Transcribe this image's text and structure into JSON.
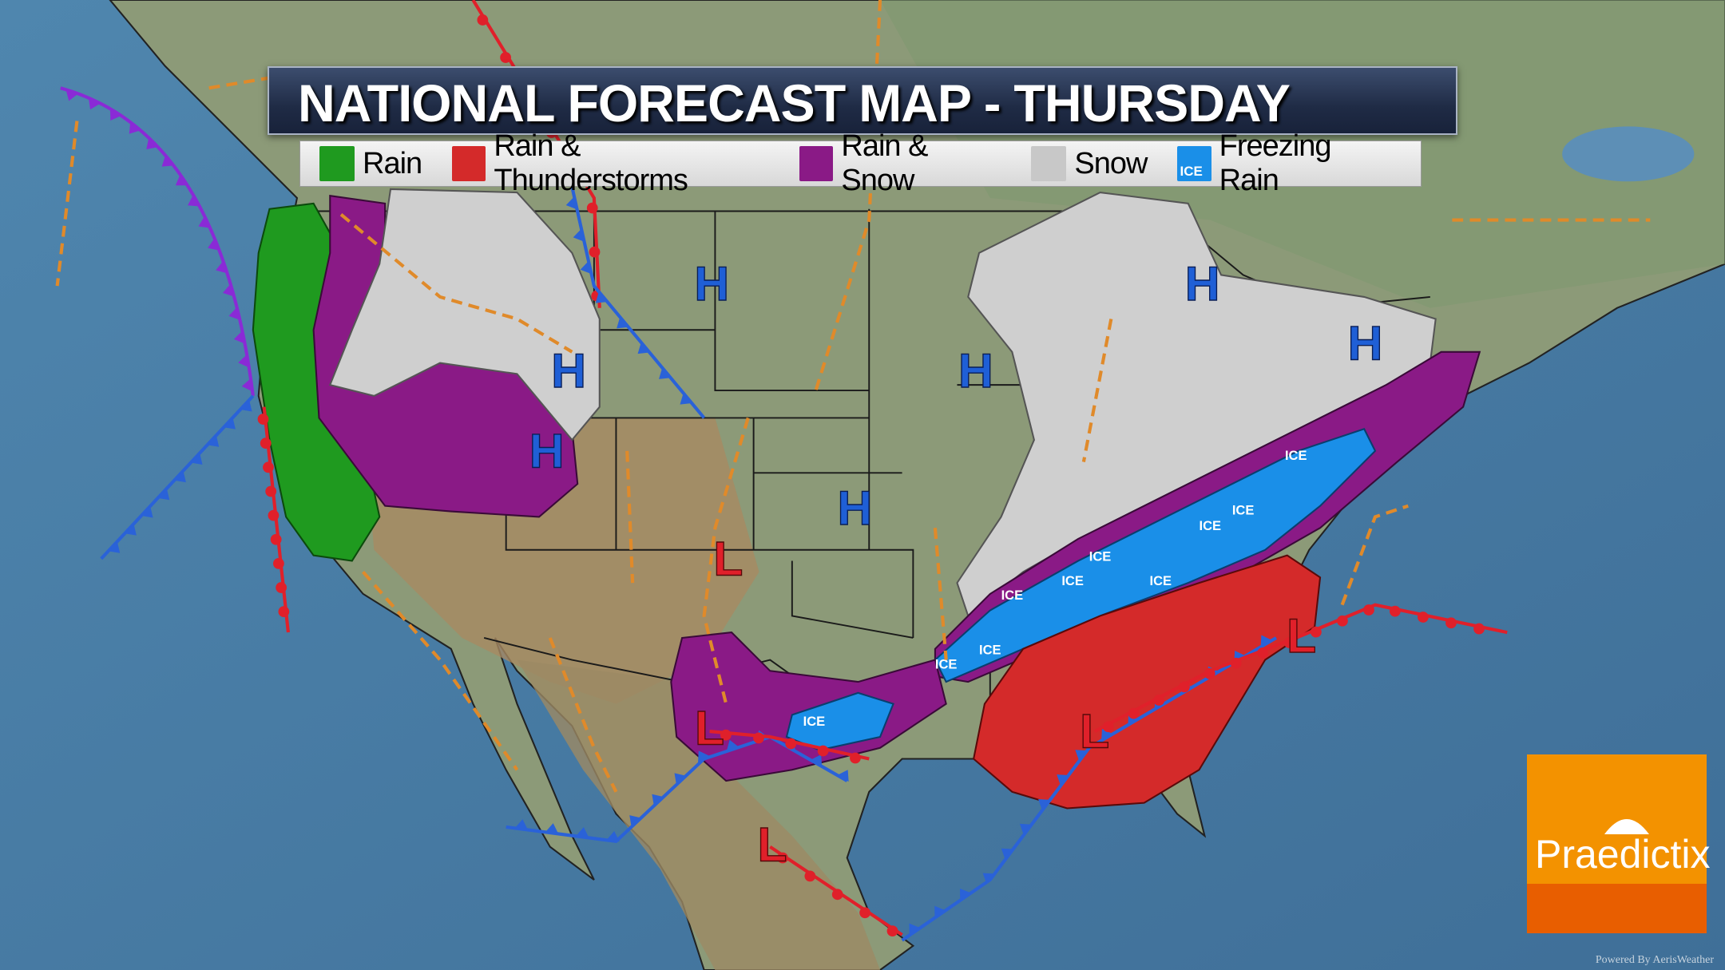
{
  "header": {
    "title": "NATIONAL FORECAST MAP - THURSDAY"
  },
  "legend": {
    "items": [
      {
        "label": "Rain",
        "color": "#1f9a1f",
        "icon": "raindrop-icon"
      },
      {
        "label": "Rain & Thunderstorms",
        "color": "#d42a2a",
        "icon": "lightning-icon"
      },
      {
        "label": "Rain & Snow",
        "color": "#8a1a86",
        "icon": "snowflake-icon"
      },
      {
        "label": "Snow",
        "color": "#c8c8c8",
        "icon": "snowflake-icon"
      },
      {
        "label": "Freezing Rain",
        "color": "#1a8fe8",
        "icon": "ice-icon",
        "badge": "ICE"
      }
    ]
  },
  "map": {
    "high_label": "H",
    "low_label": "L",
    "high_color": "#1f5fd6",
    "low_color": "#e0202a",
    "ice_label": "ICE",
    "cold_front_color": "#2a62d8",
    "warm_front_color": "#e0202a",
    "occluded_color": "#8a2ad6",
    "trough_color": "#e08a2a"
  },
  "brand": {
    "name": "Praedictix",
    "powered_by": "Powered By AerisWeather",
    "colors": {
      "top": "#f39200",
      "bottom": "#e85e00"
    }
  }
}
